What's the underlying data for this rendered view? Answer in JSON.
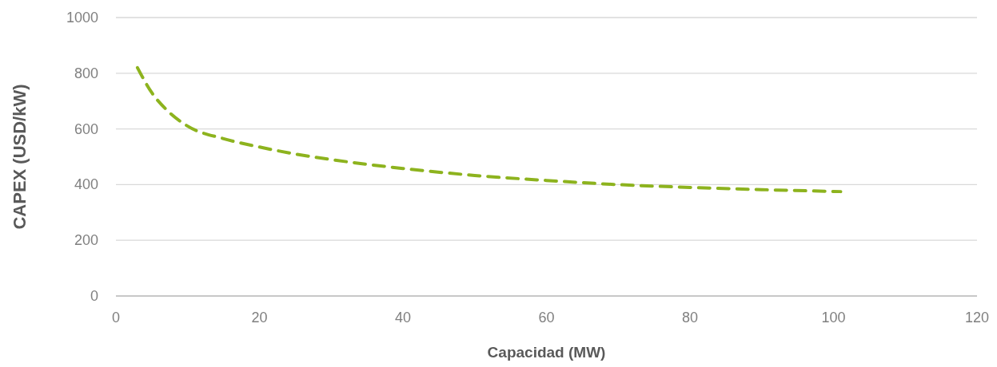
{
  "chart_data": {
    "type": "line",
    "xlabel": "Capacidad (MW)",
    "ylabel": "CAPEX (USD/kW)",
    "x": [
      3,
      5,
      7,
      10,
      15,
      20,
      25,
      30,
      40,
      50,
      60,
      70,
      80,
      90,
      101
    ],
    "series": [
      {
        "color": "#8db31e",
        "values": [
          820,
          730,
          670,
          610,
          565,
          535,
          510,
          490,
          458,
          433,
          415,
          400,
          390,
          382,
          375
        ]
      }
    ],
    "xlim": [
      0,
      120
    ],
    "xticks": [
      0,
      20,
      40,
      60,
      80,
      100,
      120
    ],
    "ylim": [
      0,
      1000
    ],
    "yticks": [
      0,
      200,
      400,
      600,
      800,
      1000
    ],
    "grid": "y",
    "marker": "none",
    "line_style": "dashed"
  }
}
